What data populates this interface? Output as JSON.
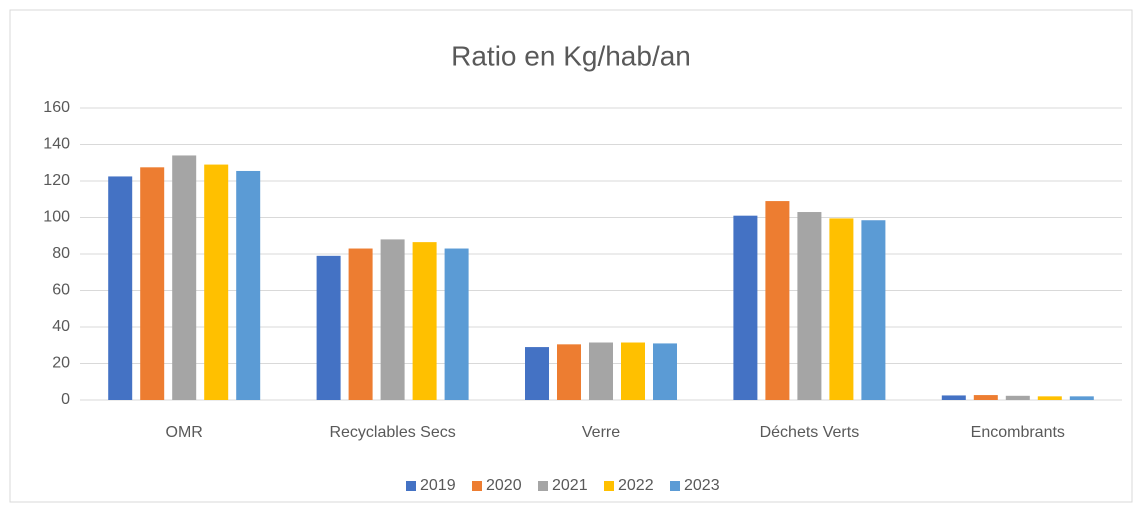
{
  "chart_data": {
    "type": "bar",
    "title": "Ratio en Kg/hab/an",
    "categories": [
      "OMR",
      "Recyclables Secs",
      "Verre",
      "Déchets Verts",
      "Encombrants"
    ],
    "series": [
      {
        "name": "2019",
        "color": "#4472c4",
        "values": [
          122.5,
          79,
          29,
          101,
          2.5
        ]
      },
      {
        "name": "2020",
        "color": "#ed7d31",
        "values": [
          127.5,
          83,
          30.5,
          109,
          2.7
        ]
      },
      {
        "name": "2021",
        "color": "#a5a5a5",
        "values": [
          134,
          88,
          31.5,
          103,
          2.3
        ]
      },
      {
        "name": "2022",
        "color": "#ffc000",
        "values": [
          129,
          86.5,
          31.5,
          99.5,
          2
        ]
      },
      {
        "name": "2023",
        "color": "#5b9bd5",
        "values": [
          125.5,
          83,
          31,
          98.5,
          2
        ]
      }
    ],
    "ylim": [
      0,
      160
    ],
    "yticks": [
      0,
      20,
      40,
      60,
      80,
      100,
      120,
      140,
      160
    ],
    "grid": true,
    "legend": "bottom"
  }
}
